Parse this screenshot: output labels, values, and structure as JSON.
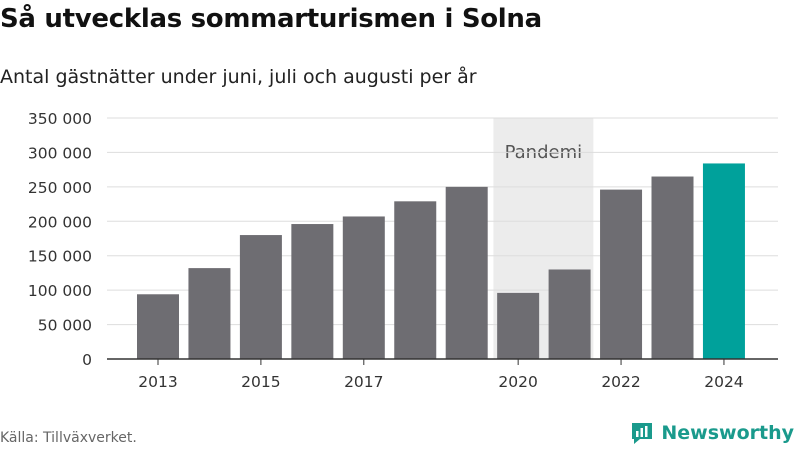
{
  "title": "Så utvecklas sommarturismen i Solna",
  "subtitle": "Antal gästnätter under juni, juli och augusti per år",
  "source": "Källa: Tillväxverket.",
  "brand": {
    "name": "Newsworthy",
    "logo_icon": "newsworthy-logo-icon"
  },
  "colors": {
    "bar": "#6e6d72",
    "highlight": "#00a19b",
    "pandemic_band": "#ececec",
    "grid": "#dddddd",
    "brand": "#1a9a8c"
  },
  "chart_data": {
    "type": "bar",
    "categories": [
      "2013",
      "2014",
      "2015",
      "2016",
      "2017",
      "2018",
      "2019",
      "2020",
      "2021",
      "2022",
      "2023",
      "2024"
    ],
    "values": [
      94000,
      132000,
      180000,
      196000,
      207000,
      229000,
      250000,
      96000,
      130000,
      246000,
      265000,
      284000
    ],
    "highlight": "2024",
    "x_tick_labels": [
      "2013",
      "2015",
      "2017",
      "2020",
      "2022",
      "2024"
    ],
    "y_ticks": [
      0,
      50000,
      100000,
      150000,
      200000,
      250000,
      300000,
      350000
    ],
    "y_tick_labels": [
      "0",
      "50 000",
      "100 000",
      "150 000",
      "200 000",
      "250 000",
      "300 000",
      "350 000"
    ],
    "ylim": [
      0,
      350000
    ],
    "grid": true,
    "annotation": {
      "label": "Pandemi",
      "from": "2020",
      "to": "2021"
    }
  }
}
